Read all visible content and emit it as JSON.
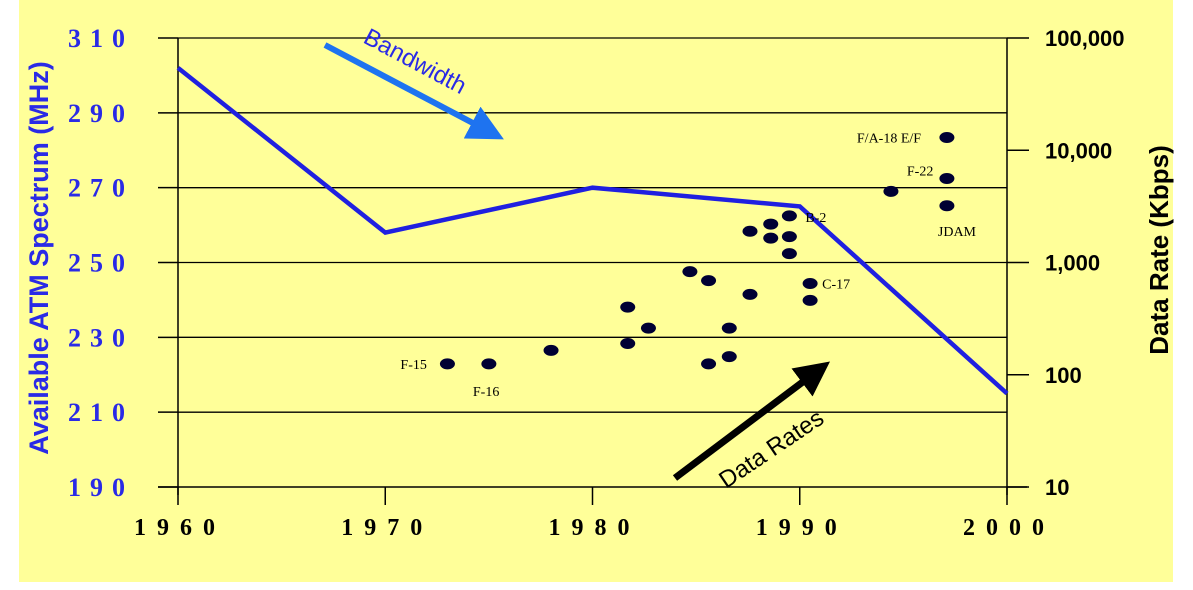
{
  "chart_data": {
    "type": "line",
    "colors": {
      "background": "#ffff99",
      "bandwidth_line": "#2020e0",
      "left_axis_text": "#2a2ae6",
      "bandwidth_arrow": "#1e73f0",
      "data_rate_arrow": "#000000",
      "points": "#000033"
    },
    "xlim": [
      1960,
      2000
    ],
    "x_ticks": [
      {
        "value": 1960,
        "label": "1960"
      },
      {
        "value": 1970,
        "label": "1970"
      },
      {
        "value": 1980,
        "label": "1980"
      },
      {
        "value": 1990,
        "label": "1990"
      },
      {
        "value": 2000,
        "label": "2000"
      }
    ],
    "ylabel_left": "Available ATM Spectrum (MHz)",
    "ylim_left": [
      190,
      310
    ],
    "y_ticks_left": [
      {
        "value": 190,
        "label": "190"
      },
      {
        "value": 210,
        "label": "210"
      },
      {
        "value": 230,
        "label": "230"
      },
      {
        "value": 250,
        "label": "250"
      },
      {
        "value": 270,
        "label": "270"
      },
      {
        "value": 290,
        "label": "290"
      },
      {
        "value": 310,
        "label": "310"
      }
    ],
    "ylabel_right": "Data Rate (Kbps)",
    "yscale_right": "log",
    "ylim_right": [
      10,
      100000
    ],
    "y_ticks_right": [
      {
        "value": 10,
        "label": "10"
      },
      {
        "value": 100,
        "label": "100"
      },
      {
        "value": 1000,
        "label": "1,000"
      },
      {
        "value": 10000,
        "label": "10,000"
      },
      {
        "value": 100000,
        "label": "100,000"
      }
    ],
    "grid": "horizontal",
    "series": [
      {
        "type": "line",
        "axis": "left",
        "x": [
          1960,
          1970,
          1980,
          1990,
          2000
        ],
        "y": [
          302,
          258,
          270,
          265,
          215
        ]
      },
      {
        "type": "scatter",
        "axis": "right",
        "points": [
          {
            "x": 1973,
            "y": 125,
            "label": "F-15"
          },
          {
            "x": 1975,
            "y": 125,
            "label": "F-16"
          },
          {
            "x": 1978,
            "y": 165,
            "label": ""
          },
          {
            "x": 1981.7,
            "y": 190,
            "label": ""
          },
          {
            "x": 1981.7,
            "y": 400,
            "label": ""
          },
          {
            "x": 1982.7,
            "y": 260,
            "label": ""
          },
          {
            "x": 1984.7,
            "y": 830,
            "label": ""
          },
          {
            "x": 1985.6,
            "y": 690,
            "label": ""
          },
          {
            "x": 1985.6,
            "y": 125,
            "label": ""
          },
          {
            "x": 1986.6,
            "y": 145,
            "label": ""
          },
          {
            "x": 1986.6,
            "y": 260,
            "label": ""
          },
          {
            "x": 1987.6,
            "y": 520,
            "label": ""
          },
          {
            "x": 1987.6,
            "y": 1900,
            "label": ""
          },
          {
            "x": 1988.6,
            "y": 1650,
            "label": ""
          },
          {
            "x": 1988.6,
            "y": 2200,
            "label": ""
          },
          {
            "x": 1989.5,
            "y": 2600,
            "label": "B-2"
          },
          {
            "x": 1989.5,
            "y": 1700,
            "label": ""
          },
          {
            "x": 1989.5,
            "y": 1200,
            "label": ""
          },
          {
            "x": 1990.5,
            "y": 650,
            "label": "C-17"
          },
          {
            "x": 1990.5,
            "y": 460,
            "label": ""
          },
          {
            "x": 1994.4,
            "y": 4300,
            "label": ""
          },
          {
            "x": 1997.1,
            "y": 13000,
            "label": "F/A-18 E/F"
          },
          {
            "x": 1997.1,
            "y": 5600,
            "label": "F-22"
          },
          {
            "x": 1997.1,
            "y": 3200,
            "label": "JDAM"
          }
        ]
      }
    ],
    "annotations": [
      {
        "text": "Bandwidth",
        "kind": "arrow"
      },
      {
        "text": "Data Rates",
        "kind": "arrow"
      }
    ]
  }
}
